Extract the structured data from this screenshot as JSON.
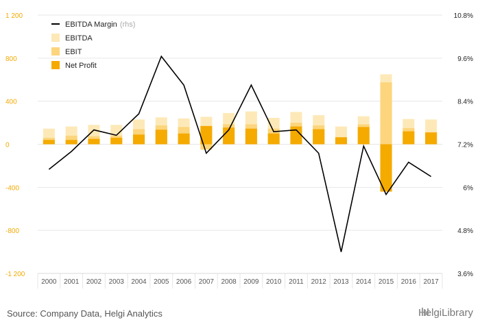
{
  "chart_data": {
    "type": "bar+line",
    "title": "",
    "categories": [
      "2000",
      "2001",
      "2002",
      "2003",
      "2004",
      "2005",
      "2006",
      "2007",
      "2008",
      "2009",
      "2010",
      "2011",
      "2012",
      "2013",
      "2014",
      "2015",
      "2016",
      "2017"
    ],
    "series": [
      {
        "name": "EBITDA",
        "axis": "left",
        "kind": "bar",
        "values": [
          145,
          165,
          180,
          180,
          230,
          250,
          240,
          255,
          290,
          305,
          245,
          300,
          270,
          165,
          260,
          650,
          235,
          230
        ]
      },
      {
        "name": "EBIT",
        "axis": "left",
        "kind": "bar",
        "values": [
          60,
          80,
          75,
          80,
          140,
          175,
          160,
          -50,
          185,
          185,
          145,
          200,
          175,
          65,
          185,
          575,
          150,
          110
        ]
      },
      {
        "name": "Net Profit",
        "axis": "left",
        "kind": "bar",
        "values": [
          40,
          40,
          50,
          60,
          90,
          135,
          100,
          170,
          155,
          145,
          100,
          165,
          140,
          65,
          160,
          -440,
          120,
          110
        ]
      },
      {
        "name": "EBITDA Margin",
        "axis": "right",
        "kind": "line",
        "values": [
          6.5,
          7.0,
          7.6,
          7.45,
          8.05,
          9.65,
          8.85,
          6.95,
          7.6,
          8.85,
          7.55,
          7.6,
          6.95,
          4.2,
          7.15,
          5.8,
          6.7,
          6.3
        ]
      }
    ],
    "left_axis": {
      "ticks": [
        "1 200",
        "800",
        "400",
        "0",
        "-400",
        "-800",
        "-1 200"
      ],
      "ylim": [
        -1200,
        1200
      ]
    },
    "right_axis": {
      "ticks": [
        "10.8%",
        "9.6%",
        "8.4%",
        "7.2%",
        "6%",
        "4.8%",
        "3.6%"
      ],
      "ylim": [
        3.6,
        10.8
      ]
    },
    "legend": {
      "position": "top-left",
      "items": [
        {
          "label": "EBITDA Margin",
          "suffix": "(rhs)",
          "kind": "line",
          "color": "#000000"
        },
        {
          "label": "EBITDA",
          "suffix": "",
          "kind": "box",
          "color": "#fde9b8"
        },
        {
          "label": "EBIT",
          "suffix": "",
          "kind": "box",
          "color": "#fcd57c"
        },
        {
          "label": "Net Profit",
          "suffix": "",
          "kind": "box",
          "color": "#f5aa00"
        }
      ]
    },
    "colors": {
      "EBITDA": "#fde9b8",
      "EBIT": "#fcd57c",
      "Net Profit": "#f5aa00",
      "line": "#000000",
      "grid": "#e6e6e6",
      "left_tick": "#f2a900"
    },
    "grid": true
  },
  "footer": {
    "source": "Source: Company Data, Helgi Analytics",
    "brand": "HelgiLibrary"
  }
}
